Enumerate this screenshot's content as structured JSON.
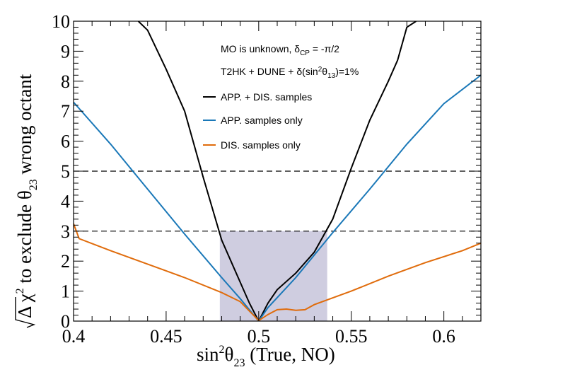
{
  "chart_data": {
    "type": "line",
    "title": "",
    "xlabel": "sin²θ₂₃ (True, NO)",
    "xlabel_parts": {
      "a": "sin",
      "b": "2",
      "c": "θ",
      "d": "23",
      "e": " (True, NO)"
    },
    "ylabel": "√Δ χ² to exclude θ₂₃ wrong octant",
    "ylabel_parts": {
      "a": "Δ χ",
      "b": "2",
      "c": " to exclude θ",
      "d": "23",
      "e": " wrong octant"
    },
    "xlim": [
      0.4,
      0.62
    ],
    "ylim": [
      0,
      10
    ],
    "xticks": [
      0.4,
      0.45,
      0.5,
      0.55,
      0.6
    ],
    "xtick_labels": [
      "0.4",
      "0.45",
      "0.5",
      "0.55",
      "0.6"
    ],
    "yticks": [
      0,
      1,
      2,
      3,
      4,
      5,
      6,
      7,
      8,
      9,
      10
    ],
    "ytick_labels": [
      "0",
      "1",
      "2",
      "3",
      "4",
      "5",
      "6",
      "7",
      "8",
      "9",
      "10"
    ],
    "grid": false,
    "annotations": {
      "line1": {
        "a": "MO is unknown, δ",
        "b": "CP",
        "c": " = -π/2"
      },
      "line2": {
        "a": "T2HK + DUNE + δ(sin",
        "b": "2",
        "c": "θ",
        "d": "13",
        "e": ")=1%"
      }
    },
    "reference_lines": [
      {
        "y": 3,
        "style": "dashed",
        "color": "#000000"
      },
      {
        "y": 5,
        "style": "dashed",
        "color": "#000000"
      }
    ],
    "shaded_band": {
      "x": [
        0.479,
        0.537
      ],
      "y": [
        0,
        3
      ],
      "color": "#cfcde0"
    },
    "legend_position": "top-center",
    "series": [
      {
        "name": "APP. + DIS. samples",
        "color": "#000000",
        "points": [
          [
            0.435,
            10
          ],
          [
            0.44,
            9.7
          ],
          [
            0.45,
            8.4
          ],
          [
            0.46,
            7.0
          ],
          [
            0.47,
            4.8
          ],
          [
            0.48,
            2.7
          ],
          [
            0.49,
            1.3
          ],
          [
            0.495,
            0.6
          ],
          [
            0.5,
            0.0
          ],
          [
            0.505,
            0.6
          ],
          [
            0.51,
            1.05
          ],
          [
            0.52,
            1.6
          ],
          [
            0.53,
            2.3
          ],
          [
            0.54,
            3.4
          ],
          [
            0.55,
            5.1
          ],
          [
            0.56,
            6.7
          ],
          [
            0.57,
            8.0
          ],
          [
            0.575,
            8.7
          ],
          [
            0.58,
            9.8
          ],
          [
            0.585,
            10
          ]
        ]
      },
      {
        "name": "APP. samples only",
        "color": "#1a78b8",
        "points": [
          [
            0.4,
            7.3
          ],
          [
            0.42,
            5.9
          ],
          [
            0.44,
            4.4
          ],
          [
            0.46,
            2.9
          ],
          [
            0.48,
            1.45
          ],
          [
            0.49,
            0.75
          ],
          [
            0.5,
            0.0
          ],
          [
            0.505,
            0.45
          ],
          [
            0.52,
            1.45
          ],
          [
            0.54,
            2.95
          ],
          [
            0.56,
            4.4
          ],
          [
            0.58,
            5.9
          ],
          [
            0.6,
            7.25
          ],
          [
            0.62,
            8.2
          ]
        ]
      },
      {
        "name": "DIS. samples only",
        "color": "#e06c0c",
        "points": [
          [
            0.4,
            3.25
          ],
          [
            0.403,
            2.75
          ],
          [
            0.42,
            2.35
          ],
          [
            0.44,
            1.9
          ],
          [
            0.46,
            1.45
          ],
          [
            0.48,
            0.95
          ],
          [
            0.49,
            0.65
          ],
          [
            0.5,
            0.02
          ],
          [
            0.505,
            0.22
          ],
          [
            0.51,
            0.38
          ],
          [
            0.515,
            0.4
          ],
          [
            0.52,
            0.36
          ],
          [
            0.525,
            0.38
          ],
          [
            0.53,
            0.55
          ],
          [
            0.55,
            1.0
          ],
          [
            0.57,
            1.5
          ],
          [
            0.59,
            1.95
          ],
          [
            0.61,
            2.35
          ],
          [
            0.62,
            2.6
          ]
        ]
      }
    ]
  }
}
